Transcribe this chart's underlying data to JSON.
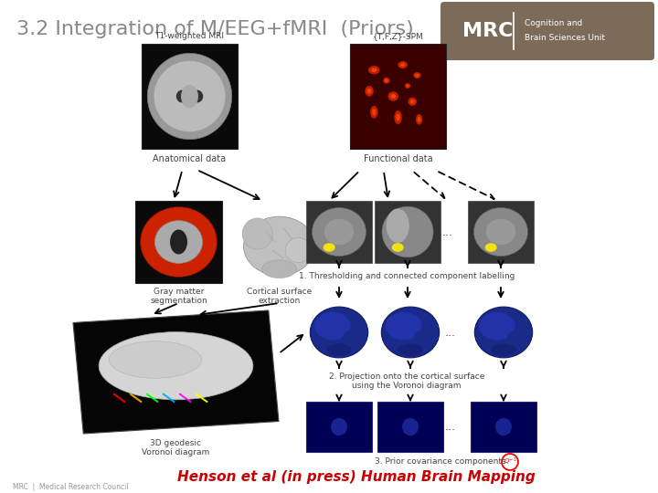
{
  "title": "3.2 Integration of M/EEG+fMRI  (Priors)",
  "title_fontsize": 16,
  "title_color": "#888888",
  "bg_color": "#ffffff",
  "mrc_bg": "#7d6b5a",
  "t1_label": "T1-weighted MRI",
  "spm_label": "{T,F,Z}-SPM",
  "anat_label": "Anatomical data",
  "func_label": "Functional data",
  "gm_label": "Gray matter\nsegmentation",
  "cortical_label": "Cortical surface\nextraction",
  "thresh_label": "1. Thresholding and connected component labelling",
  "proj_label": "2. Projection onto the cortical surface\nusing the Voronoi diagram",
  "prior_label": "3. Prior covariance components",
  "geodesic_label": "3D geodesic\nVoronoi diagram",
  "citation": "Henson et al (in press) Human Brain Mapping",
  "citation_color": "#cc0000",
  "footer_text": "MRC  |  Medical Research Council",
  "footer_color": "#999999",
  "label_fontsize": 6.5,
  "label_color": "#444444"
}
